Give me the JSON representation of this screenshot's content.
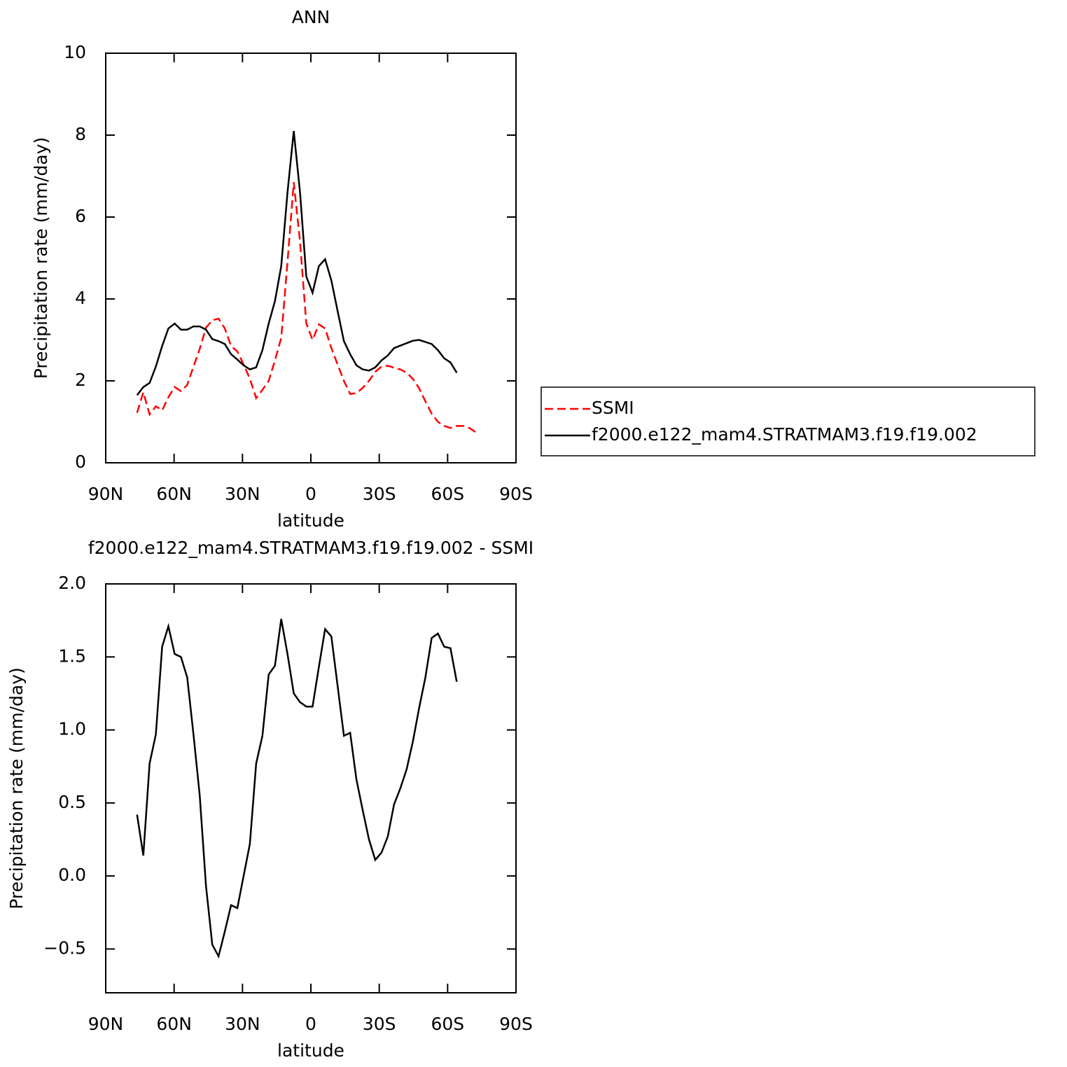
{
  "chart_data": [
    {
      "type": "line",
      "title": "ANN",
      "xlabel": "latitude",
      "ylabel": "Precipitation rate (mm/day)",
      "xlim": [
        90,
        -90
      ],
      "xticks": [
        {
          "value": 90,
          "label": "90N"
        },
        {
          "value": 60,
          "label": "60N"
        },
        {
          "value": 30,
          "label": "30N"
        },
        0,
        {
          "value": -30,
          "label": "30S"
        },
        {
          "value": -60,
          "label": "60S"
        },
        {
          "value": -90,
          "label": "90S"
        }
      ],
      "ylim": [
        0,
        10
      ],
      "yticks": [
        0,
        2,
        4,
        6,
        8,
        10
      ],
      "legend": "right",
      "series": [
        {
          "name": "SSMI",
          "color": "#ff0000",
          "linestyle": "dashed",
          "x": [
            76.25,
            73.5,
            70.75,
            68,
            65.25,
            62.5,
            59.75,
            57,
            54.25,
            51.5,
            48.75,
            46,
            43.25,
            40.5,
            37.75,
            35,
            32.25,
            29.5,
            26.75,
            24,
            21.25,
            18.5,
            15.75,
            13,
            10.25,
            7.5,
            4.75,
            2,
            -0.75,
            -3.5,
            -6.25,
            -9,
            -11.75,
            -14.5,
            -17.25,
            -20,
            -22.75,
            -25.5,
            -28.25,
            -31,
            -33.75,
            -36.5,
            -39.25,
            -42,
            -44.75,
            -47.5,
            -50.25,
            -53,
            -55.75,
            -58.5,
            -61.25,
            -64,
            -66.75,
            -69.5,
            -72.25
          ],
          "values": [
            1.22,
            1.72,
            1.18,
            1.38,
            1.28,
            1.6,
            1.85,
            1.75,
            1.9,
            2.35,
            2.78,
            3.3,
            3.48,
            3.52,
            3.28,
            2.85,
            2.72,
            2.4,
            2.05,
            1.58,
            1.78,
            2.0,
            2.5,
            3.05,
            4.9,
            6.85,
            5.4,
            3.4,
            3.0,
            3.38,
            3.28,
            2.8,
            2.4,
            2.0,
            1.68,
            1.7,
            1.83,
            2.0,
            2.22,
            2.35,
            2.37,
            2.32,
            2.28,
            2.2,
            2.05,
            1.82,
            1.5,
            1.2,
            1.0,
            0.9,
            0.85,
            0.9,
            0.9,
            0.85,
            0.75
          ]
        },
        {
          "name": "f2000.e122_mam4.STRATMAM3.f19.f19.002",
          "color": "#000000",
          "linestyle": "solid",
          "x": [
            76.25,
            73.5,
            70.75,
            68,
            65.25,
            62.5,
            59.75,
            57,
            54.25,
            51.5,
            48.75,
            46,
            43.25,
            40.5,
            37.75,
            35,
            32.25,
            29.5,
            26.75,
            24,
            21.25,
            18.5,
            15.75,
            13,
            10.25,
            7.5,
            4.75,
            2,
            -0.75,
            -3.5,
            -6.25,
            -9,
            -11.75,
            -14.5,
            -17.25,
            -20,
            -22.75,
            -25.5,
            -28.25,
            -31,
            -33.75,
            -36.5,
            -39.25,
            -42,
            -44.75,
            -47.5,
            -50.25,
            -53,
            -55.75,
            -58.5,
            -61.25,
            -64
          ],
          "values": [
            1.65,
            1.85,
            1.95,
            2.35,
            2.85,
            3.28,
            3.4,
            3.25,
            3.25,
            3.33,
            3.33,
            3.25,
            3.02,
            2.97,
            2.9,
            2.65,
            2.52,
            2.38,
            2.28,
            2.33,
            2.75,
            3.4,
            3.95,
            4.8,
            6.6,
            8.1,
            6.6,
            4.55,
            4.15,
            4.8,
            4.97,
            4.45,
            3.7,
            2.97,
            2.65,
            2.38,
            2.28,
            2.25,
            2.33,
            2.5,
            2.62,
            2.8,
            2.86,
            2.92,
            2.98,
            3.0,
            2.95,
            2.9,
            2.75,
            2.55,
            2.45,
            2.2
          ]
        }
      ]
    },
    {
      "type": "line",
      "title": "f2000.e122_mam4.STRATMAM3.f19.f19.002 - SSMI",
      "xlabel": "latitude",
      "ylabel": "Precipitation rate (mm/day)",
      "xlim": [
        90,
        -90
      ],
      "xticks": [
        {
          "value": 90,
          "label": "90N"
        },
        {
          "value": 60,
          "label": "60N"
        },
        {
          "value": 30,
          "label": "30N"
        },
        0,
        {
          "value": -30,
          "label": "30S"
        },
        {
          "value": -60,
          "label": "60S"
        },
        {
          "value": -90,
          "label": "90S"
        }
      ],
      "ylim": [
        -0.8,
        2.0
      ],
      "yticks": [
        {
          "value": 2.0,
          "label": "2.0"
        },
        {
          "value": 1.5,
          "label": "1.5"
        },
        {
          "value": 1.0,
          "label": "1.0"
        },
        {
          "value": 0.5,
          "label": "0.5"
        },
        {
          "value": 0.0,
          "label": "0.0"
        },
        {
          "value": -0.5,
          "label": "−0.5"
        }
      ],
      "series": [
        {
          "color": "#000000",
          "linestyle": "solid",
          "x": [
            76.25,
            73.5,
            70.75,
            68,
            65.25,
            62.5,
            59.75,
            57,
            54.25,
            51.5,
            48.75,
            46,
            43.25,
            40.5,
            37.75,
            35,
            32.25,
            29.5,
            26.75,
            24,
            21.25,
            18.5,
            15.75,
            13,
            10.25,
            7.5,
            4.75,
            2,
            -0.75,
            -3.5,
            -6.25,
            -9,
            -11.75,
            -14.5,
            -17.25,
            -20,
            -22.75,
            -25.5,
            -28.25,
            -31,
            -33.75,
            -36.5,
            -39.25,
            -42,
            -44.75,
            -47.5,
            -50.25,
            -53,
            -55.75,
            -58.5,
            -61.25,
            -64
          ],
          "values": [
            0.42,
            0.14,
            0.77,
            0.97,
            1.57,
            1.71,
            1.52,
            1.5,
            1.36,
            0.97,
            0.55,
            -0.07,
            -0.47,
            -0.55,
            -0.38,
            -0.2,
            -0.22,
            0.0,
            0.22,
            0.77,
            0.96,
            1.38,
            1.44,
            1.76,
            1.52,
            1.25,
            1.19,
            1.16,
            1.16,
            1.43,
            1.69,
            1.64,
            1.3,
            0.96,
            0.98,
            0.66,
            0.45,
            0.25,
            0.11,
            0.16,
            0.27,
            0.49,
            0.6,
            0.73,
            0.92,
            1.15,
            1.36,
            1.63,
            1.66,
            1.57,
            1.56,
            1.33
          ]
        }
      ]
    }
  ]
}
